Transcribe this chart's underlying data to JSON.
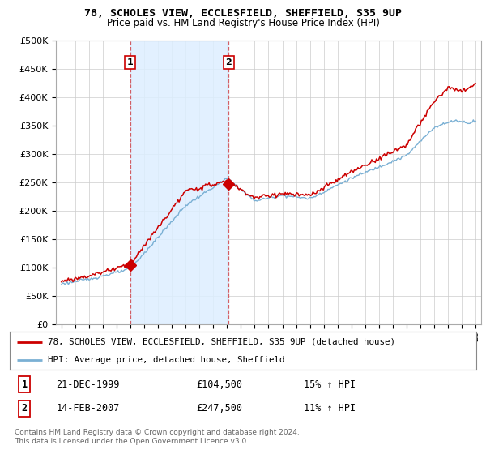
{
  "title": "78, SCHOLES VIEW, ECCLESFIELD, SHEFFIELD, S35 9UP",
  "subtitle": "Price paid vs. HM Land Registry's House Price Index (HPI)",
  "legend_line1": "78, SCHOLES VIEW, ECCLESFIELD, SHEFFIELD, S35 9UP (detached house)",
  "legend_line2": "HPI: Average price, detached house, Sheffield",
  "transaction1_date": "21-DEC-1999",
  "transaction1_price": "£104,500",
  "transaction1_hpi": "15% ↑ HPI",
  "transaction2_date": "14-FEB-2007",
  "transaction2_price": "£247,500",
  "transaction2_hpi": "11% ↑ HPI",
  "footer": "Contains HM Land Registry data © Crown copyright and database right 2024.\nThis data is licensed under the Open Government Licence v3.0.",
  "red_color": "#cc0000",
  "blue_color": "#7ab0d4",
  "shade_color": "#ddeeff",
  "grid_color": "#cccccc",
  "background_color": "#ffffff",
  "border_color": "#aaaaaa",
  "ylim": [
    0,
    500000
  ],
  "yticks": [
    0,
    50000,
    100000,
    150000,
    200000,
    250000,
    300000,
    350000,
    400000,
    450000,
    500000
  ],
  "ytick_labels": [
    "£0",
    "£50K",
    "£100K",
    "£150K",
    "£200K",
    "£250K",
    "£300K",
    "£350K",
    "£400K",
    "£450K",
    "£500K"
  ],
  "transaction1_year": 1999.97,
  "transaction2_year": 2007.12,
  "transaction1_value": 104500,
  "transaction2_value": 247500,
  "xstart": 1995,
  "xend": 2025
}
